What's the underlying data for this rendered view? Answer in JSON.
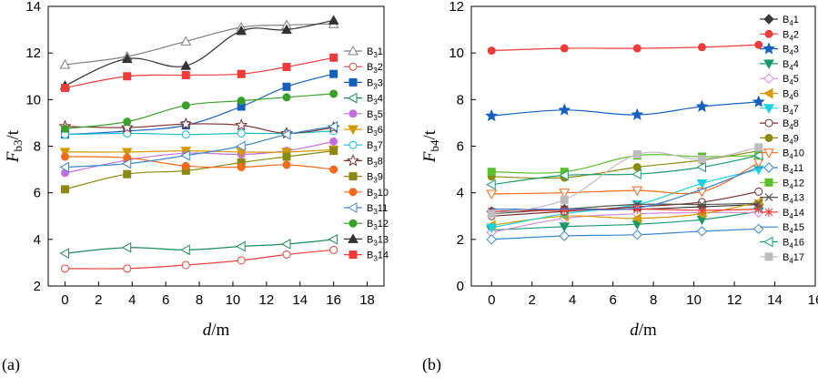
{
  "chart_data": [
    {
      "type": "line",
      "panel_label": "(a)",
      "xlabel_var": "d",
      "xlabel_unit": "/m",
      "ylabel_var": "F",
      "ylabel_sub": "b3",
      "ylabel_unit": "/t",
      "xlim": [
        -1,
        19
      ],
      "ylim": [
        2,
        14
      ],
      "xticks": [
        0,
        2,
        4,
        6,
        8,
        10,
        12,
        14,
        16,
        18
      ],
      "yticks": [
        2,
        4,
        6,
        8,
        10,
        12,
        14
      ],
      "legend_position": "right",
      "x": [
        0,
        3.7,
        7.2,
        10.5,
        13.2,
        16
      ],
      "series": [
        {
          "base": "B",
          "sub": "3",
          "idx": "1",
          "color": "#7f7f7f",
          "marker": "triangle-open",
          "values": [
            11.5,
            11.85,
            12.5,
            13.1,
            13.2,
            13.25
          ]
        },
        {
          "base": "B",
          "sub": "3",
          "idx": "2",
          "color": "#e8413a",
          "marker": "circle-open",
          "values": [
            2.75,
            2.75,
            2.9,
            3.1,
            3.35,
            3.55
          ]
        },
        {
          "base": "B",
          "sub": "3",
          "idx": "3",
          "color": "#1560bd",
          "marker": "square",
          "values": [
            8.5,
            8.65,
            8.9,
            9.7,
            10.55,
            11.1
          ]
        },
        {
          "base": "B",
          "sub": "3",
          "idx": "4",
          "color": "#1a8a5a",
          "marker": "triangle-left-open",
          "values": [
            3.4,
            3.65,
            3.55,
            3.7,
            3.8,
            4.0
          ]
        },
        {
          "base": "B",
          "sub": "3",
          "idx": "5",
          "color": "#c26fe0",
          "marker": "circle",
          "values": [
            6.85,
            7.4,
            7.7,
            7.65,
            7.8,
            8.2
          ]
        },
        {
          "base": "B",
          "sub": "3",
          "idx": "6",
          "color": "#d49a00",
          "marker": "triangle-down",
          "values": [
            7.75,
            7.75,
            7.8,
            7.75,
            7.75,
            7.85
          ]
        },
        {
          "base": "B",
          "sub": "3",
          "idx": "7",
          "color": "#17becf",
          "marker": "circle-open",
          "values": [
            8.5,
            8.55,
            8.5,
            8.55,
            8.55,
            8.65
          ]
        },
        {
          "base": "B",
          "sub": "3",
          "idx": "8",
          "color": "#7a2e2e",
          "marker": "star-open",
          "values": [
            8.85,
            8.8,
            8.95,
            8.9,
            8.55,
            8.8
          ]
        },
        {
          "base": "B",
          "sub": "3",
          "idx": "9",
          "color": "#8a8a12",
          "marker": "square",
          "values": [
            6.15,
            6.8,
            6.95,
            7.3,
            7.55,
            7.8
          ]
        },
        {
          "base": "B",
          "sub": "3",
          "idx": "10",
          "color": "#f26a1b",
          "marker": "circle",
          "values": [
            7.55,
            7.5,
            7.15,
            7.1,
            7.2,
            7.0
          ]
        },
        {
          "base": "B",
          "sub": "3",
          "idx": "11",
          "color": "#3a86c8",
          "marker": "triangle-left-open",
          "values": [
            7.1,
            7.25,
            7.6,
            8.0,
            8.5,
            8.85
          ]
        },
        {
          "base": "B",
          "sub": "3",
          "idx": "12",
          "color": "#3aa02a",
          "marker": "circle",
          "values": [
            8.75,
            9.05,
            9.75,
            9.95,
            10.1,
            10.25
          ]
        },
        {
          "base": "B",
          "sub": "3",
          "idx": "13",
          "color": "#333333",
          "marker": "triangle",
          "values": [
            10.6,
            11.75,
            11.45,
            12.95,
            13.0,
            13.4
          ]
        },
        {
          "base": "B",
          "sub": "3",
          "idx": "14",
          "color": "#ef3b3b",
          "marker": "square",
          "values": [
            10.5,
            11.0,
            11.05,
            11.1,
            11.4,
            11.8
          ]
        }
      ]
    },
    {
      "type": "line",
      "panel_label": "(b)",
      "xlabel_var": "d",
      "xlabel_unit": "/m",
      "ylabel_var": "F",
      "ylabel_sub": "b4",
      "ylabel_unit": "/t",
      "xlim": [
        -1,
        16
      ],
      "ylim": [
        0,
        12
      ],
      "xticks": [
        0,
        2,
        4,
        6,
        8,
        10,
        12,
        14,
        16
      ],
      "yticks": [
        0,
        2,
        4,
        6,
        8,
        10,
        12
      ],
      "legend_position": "right",
      "x": [
        0,
        3.6,
        7.2,
        10.4,
        13.2
      ],
      "series": [
        {
          "base": "B",
          "sub": "4",
          "idx": "1",
          "color": "#3a3a3a",
          "marker": "diamond",
          "values": [
            3.2,
            3.3,
            3.3,
            3.4,
            3.5
          ]
        },
        {
          "base": "B",
          "sub": "4",
          "idx": "2",
          "color": "#ef3b3b",
          "marker": "circle",
          "values": [
            10.1,
            10.2,
            10.2,
            10.25,
            10.35
          ]
        },
        {
          "base": "B",
          "sub": "4",
          "idx": "3",
          "color": "#1560bd",
          "marker": "star",
          "values": [
            7.3,
            7.55,
            7.35,
            7.7,
            7.9
          ]
        },
        {
          "base": "B",
          "sub": "4",
          "idx": "4",
          "color": "#1a9a6a",
          "marker": "triangle-down",
          "values": [
            2.4,
            2.55,
            2.65,
            2.85,
            3.2
          ]
        },
        {
          "base": "B",
          "sub": "4",
          "idx": "5",
          "color": "#d08be0",
          "marker": "diamond-open",
          "values": [
            2.3,
            2.9,
            3.1,
            3.15,
            3.15
          ]
        },
        {
          "base": "B",
          "sub": "4",
          "idx": "6",
          "color": "#d49a00",
          "marker": "triangle-left",
          "values": [
            2.6,
            3.0,
            2.9,
            3.1,
            3.6
          ]
        },
        {
          "base": "B",
          "sub": "4",
          "idx": "7",
          "color": "#17d0e0",
          "marker": "triangle-down",
          "values": [
            2.5,
            3.1,
            3.5,
            4.4,
            5.0
          ]
        },
        {
          "base": "B",
          "sub": "4",
          "idx": "8",
          "color": "#7a2e2e",
          "marker": "circle-open",
          "values": [
            3.0,
            3.2,
            3.4,
            3.6,
            4.05
          ]
        },
        {
          "base": "B",
          "sub": "4",
          "idx": "9",
          "color": "#8a8a12",
          "marker": "circle",
          "values": [
            4.7,
            4.65,
            5.1,
            5.4,
            5.8
          ]
        },
        {
          "base": "B",
          "sub": "4",
          "idx": "10",
          "color": "#f26a1b",
          "marker": "triangle-down-open",
          "values": [
            3.95,
            4.0,
            4.1,
            4.05,
            5.3
          ]
        },
        {
          "base": "B",
          "sub": "4",
          "idx": "11",
          "color": "#3a86c8",
          "marker": "diamond-open",
          "values": [
            2.0,
            2.15,
            2.2,
            2.35,
            2.45
          ]
        },
        {
          "base": "B",
          "sub": "4",
          "idx": "12",
          "color": "#5bbf2a",
          "marker": "square",
          "values": [
            4.9,
            4.9,
            5.6,
            5.55,
            5.6
          ]
        },
        {
          "base": "B",
          "sub": "4",
          "idx": "13",
          "color": "#555555",
          "marker": "x",
          "values": [
            3.1,
            3.3,
            3.5,
            3.5,
            3.55
          ]
        },
        {
          "base": "B",
          "sub": "4",
          "idx": "14",
          "color": "#ef3b3b",
          "marker": "asterisk",
          "values": [
            3.2,
            3.25,
            3.3,
            3.25,
            3.3
          ]
        },
        {
          "base": "B",
          "sub": "4",
          "idx": "15",
          "color": "#3a7fd0",
          "marker": "none",
          "values": [
            3.3,
            3.3,
            3.35,
            4.15,
            5.1
          ]
        },
        {
          "base": "B",
          "sub": "4",
          "idx": "16",
          "color": "#1a9a6a",
          "marker": "triangle-left-open",
          "values": [
            4.35,
            4.75,
            4.8,
            5.1,
            5.6
          ]
        },
        {
          "base": "B",
          "sub": "4",
          "idx": "17",
          "color": "#bdbdbd",
          "marker": "square",
          "values": [
            3.1,
            3.7,
            5.65,
            5.45,
            5.95
          ]
        }
      ]
    }
  ]
}
